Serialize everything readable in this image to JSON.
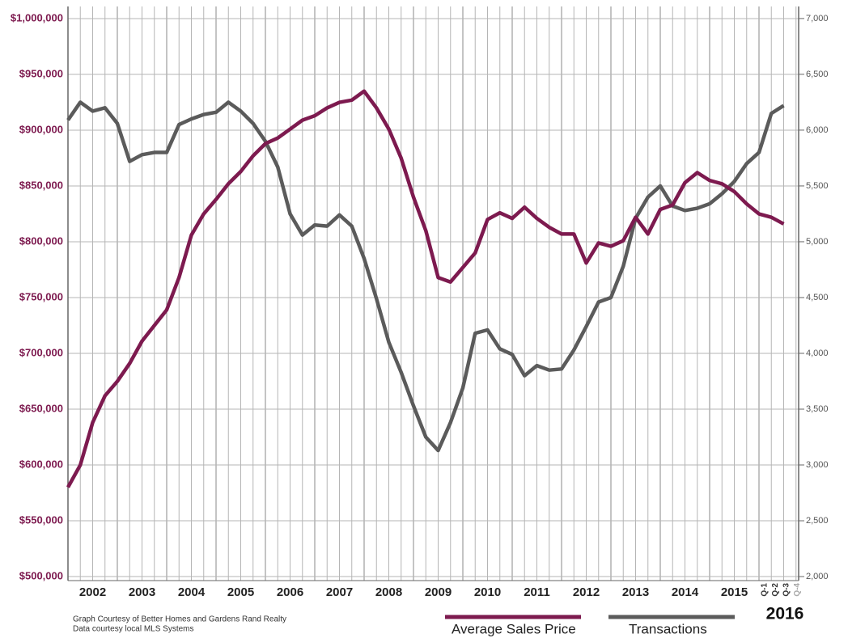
{
  "chart_data": {
    "type": "line",
    "year_labels": [
      "2002",
      "2003",
      "2004",
      "2005",
      "2006",
      "2007",
      "2008",
      "2009",
      "2010",
      "2011",
      "2012",
      "2013",
      "2014",
      "2015",
      "2016"
    ],
    "quarter_labels": [
      "Q-1",
      "Q-2",
      "Q-3",
      "Q-4"
    ],
    "series": [
      {
        "name": "Average Sales Price",
        "color": "#7d1a4f",
        "axis": "y",
        "values": [
          580000,
          600000,
          638000,
          662000,
          675000,
          691000,
          711000,
          725000,
          739000,
          768000,
          806000,
          825000,
          838000,
          852000,
          863000,
          877000,
          888000,
          893000,
          901000,
          909000,
          913000,
          920000,
          925000,
          927000,
          935000,
          920000,
          901000,
          875000,
          840000,
          810000,
          768000,
          764000,
          777000,
          790000,
          820000,
          826000,
          821000,
          831000,
          821000,
          813000,
          807000,
          807000,
          781000,
          799000,
          796000,
          801000,
          822000,
          807000,
          829000,
          833000,
          853000,
          862000,
          855000,
          852000,
          845000,
          834000,
          825000,
          822000,
          816000
        ]
      },
      {
        "name": "Transactions",
        "color": "#5b5b5b",
        "axis": "y2",
        "values": [
          6090,
          6250,
          6170,
          6200,
          6060,
          5720,
          5780,
          5800,
          5800,
          6050,
          6100,
          6140,
          6160,
          6250,
          6170,
          6060,
          5900,
          5670,
          5250,
          5060,
          5150,
          5140,
          5240,
          5140,
          4850,
          4490,
          4100,
          3830,
          3530,
          3250,
          3130,
          3380,
          3690,
          4180,
          4210,
          4040,
          3990,
          3800,
          3890,
          3850,
          3860,
          4030,
          4240,
          4460,
          4500,
          4780,
          5210,
          5400,
          5500,
          5320,
          5280,
          5300,
          5340,
          5430,
          5540,
          5700,
          5800,
          6150,
          6220
        ]
      }
    ],
    "ylim": [
      496400,
      1010900
    ],
    "yticks": [
      {
        "value": 500000,
        "label": "$500,000"
      },
      {
        "value": 550000,
        "label": "$550,000"
      },
      {
        "value": 600000,
        "label": "$600,000"
      },
      {
        "value": 650000,
        "label": "$650,000"
      },
      {
        "value": 700000,
        "label": "$700,000"
      },
      {
        "value": 750000,
        "label": "$750,000"
      },
      {
        "value": 800000,
        "label": "$800,000"
      },
      {
        "value": 850000,
        "label": "$850,000"
      },
      {
        "value": 900000,
        "label": "$900,000"
      },
      {
        "value": 950000,
        "label": "$950,000"
      },
      {
        "value": 1000000,
        "label": "$1,000,000"
      }
    ],
    "y2lim": [
      1964,
      7108
    ],
    "y2ticks": [
      {
        "value": 2000,
        "label": "2,000"
      },
      {
        "value": 2500,
        "label": "2,500"
      },
      {
        "value": 3000,
        "label": "3,000"
      },
      {
        "value": 3500,
        "label": "3,500"
      },
      {
        "value": 4000,
        "label": "4,000"
      },
      {
        "value": 4500,
        "label": "4,500"
      },
      {
        "value": 5000,
        "label": "5,000"
      },
      {
        "value": 5500,
        "label": "5,500"
      },
      {
        "value": 6000,
        "label": "6,000"
      },
      {
        "value": 6500,
        "label": "6,500"
      },
      {
        "value": 7000,
        "label": "7,000"
      }
    ],
    "grid": true,
    "notes": [
      "Graph Courtesy of Better Homes and Gardens Rand Realty",
      "Data courtesy local MLS Systems"
    ]
  }
}
